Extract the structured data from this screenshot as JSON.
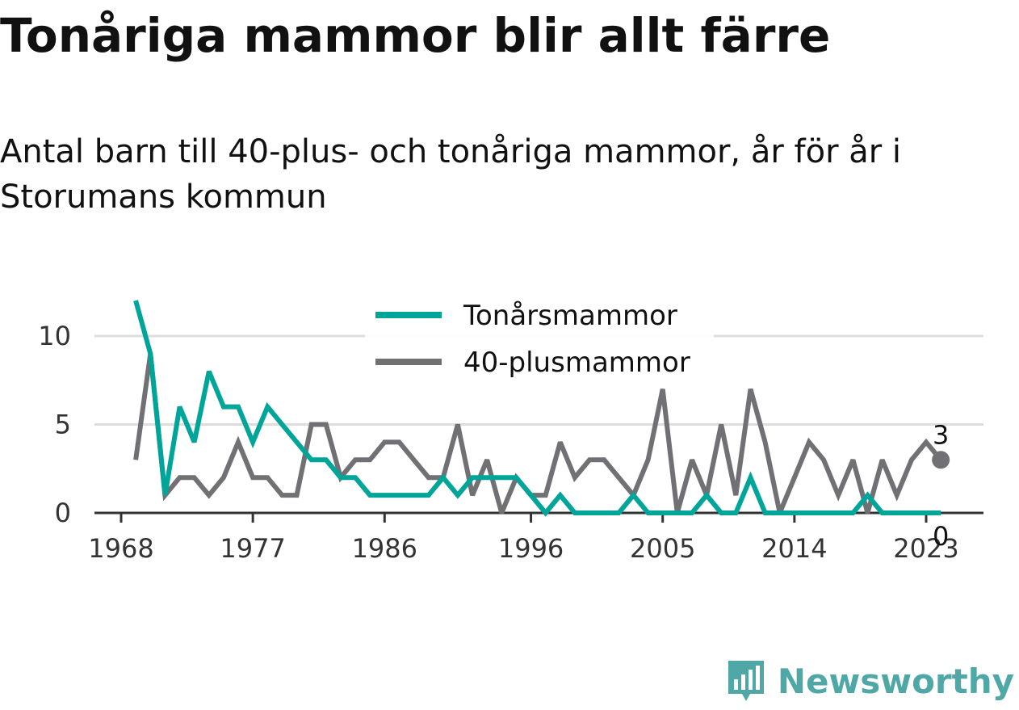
{
  "title": "Tonåriga mammor blir allt färre",
  "subtitle": "Antal barn till 40-plus- och tonåriga mammor, år för år i Storumans kommun",
  "brand": {
    "name": "Newsworthy",
    "icon": "newsworthy-logo-icon"
  },
  "colors": {
    "teen": "#00a59a",
    "plus40": "#717075",
    "grid": "#dddddd",
    "axis": "#333333",
    "brand": "#4fa8a6"
  },
  "chart_data": {
    "type": "line",
    "x": [
      1969,
      1970,
      1971,
      1972,
      1973,
      1974,
      1975,
      1976,
      1977,
      1978,
      1979,
      1980,
      1981,
      1982,
      1983,
      1984,
      1985,
      1986,
      1987,
      1988,
      1989,
      1990,
      1991,
      1992,
      1993,
      1994,
      1995,
      1996,
      1997,
      1998,
      1999,
      2000,
      2001,
      2002,
      2003,
      2004,
      2005,
      2006,
      2007,
      2008,
      2009,
      2010,
      2011,
      2012,
      2013,
      2014,
      2015,
      2016,
      2017,
      2018,
      2019,
      2020,
      2021,
      2022,
      2023,
      2024
    ],
    "xticks": [
      1968,
      1977,
      1986,
      1996,
      2005,
      2014,
      2023
    ],
    "yticks": [
      0,
      5,
      10
    ],
    "ylim": [
      0,
      12.5
    ],
    "grid": true,
    "legend_position": "top-center",
    "series": [
      {
        "name": "Tonårsmammor",
        "color": "#00a59a",
        "values": [
          12,
          9,
          1,
          6,
          4,
          8,
          6,
          6,
          4,
          6,
          5,
          4,
          3,
          3,
          2,
          2,
          1,
          1,
          1,
          1,
          1,
          2,
          1,
          2,
          2,
          2,
          2,
          1,
          0,
          1,
          0,
          0,
          0,
          0,
          1,
          0,
          0,
          0,
          0,
          1,
          0,
          0,
          2,
          0,
          0,
          0,
          0,
          0,
          0,
          0,
          1,
          0,
          0,
          0,
          0,
          0
        ],
        "end_label": "0"
      },
      {
        "name": "40-plusmammor",
        "color": "#717075",
        "values": [
          3,
          9,
          1,
          2,
          2,
          1,
          2,
          4,
          2,
          2,
          1,
          1,
          5,
          5,
          2,
          3,
          3,
          4,
          4,
          3,
          2,
          2,
          5,
          1,
          3,
          0,
          2,
          1,
          1,
          4,
          2,
          3,
          3,
          2,
          1,
          3,
          7,
          0,
          3,
          1,
          5,
          1,
          7,
          4,
          0,
          2,
          4,
          3,
          1,
          3,
          0,
          3,
          1,
          3,
          4,
          3
        ],
        "end_label": "3"
      }
    ]
  }
}
